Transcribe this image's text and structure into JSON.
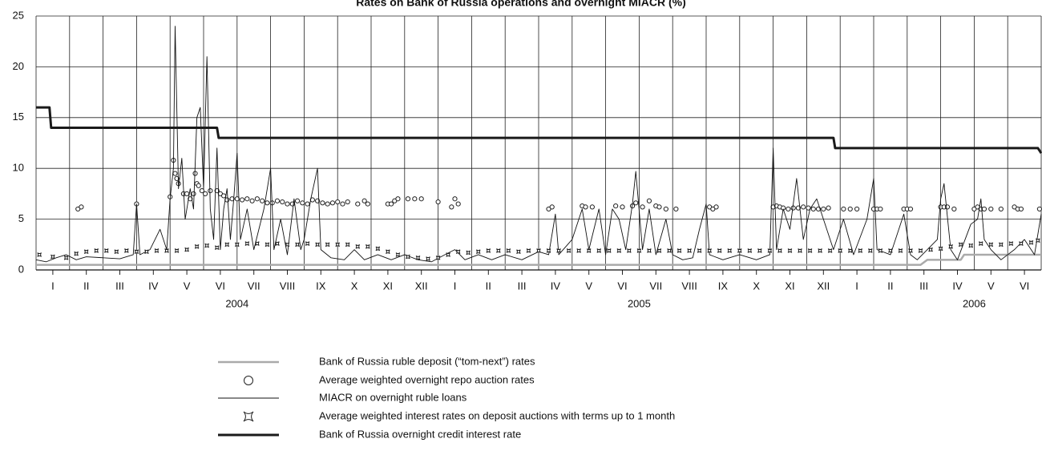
{
  "chart_data": {
    "type": "line",
    "title": "Rates on Bank of Russia operations and overnight MIACR (%)",
    "categories": [
      "I",
      "II",
      "III",
      "IV",
      "V",
      "VI",
      "VII",
      "VIII",
      "IX",
      "X",
      "XI",
      "XII",
      "I",
      "II",
      "III",
      "IV",
      "V",
      "VI",
      "VII",
      "VIII",
      "IX",
      "X",
      "XI",
      "XII",
      "I",
      "II",
      "III",
      "IV",
      "V",
      "VI"
    ],
    "year_labels": [
      "2004",
      "2005",
      "2006"
    ],
    "xlim": [
      0,
      30
    ],
    "xticks": [
      0,
      1,
      2,
      3,
      4,
      5,
      6,
      7,
      8,
      9,
      10,
      11,
      12,
      13,
      14,
      15,
      16,
      17,
      18,
      19,
      20,
      21,
      22,
      23,
      24,
      25,
      26,
      27,
      28,
      29,
      30
    ],
    "ylim": [
      0,
      25
    ],
    "yticks": [
      0,
      5,
      10,
      15,
      20,
      25
    ],
    "grid": true,
    "series": [
      {
        "name": "Bank of Russia ruble deposit (“tom-next”) rates",
        "color": "#aaaaaa",
        "marker": "line",
        "width": 2.5,
        "x": [
          0,
          26.4,
          26.6,
          27.6,
          27.7,
          30
        ],
        "values": [
          0.5,
          0.5,
          1,
          1,
          1.5,
          1.5
        ]
      },
      {
        "name": "Average weighted overnight repo auction rates",
        "color": "#222222",
        "marker": "circle",
        "width": 1,
        "x": [
          1.25,
          1.35,
          3.0,
          4.0,
          4.1,
          4.15,
          4.2,
          4.25,
          4.4,
          4.5,
          4.6,
          4.7,
          4.75,
          4.8,
          4.85,
          4.95,
          5.05,
          5.2,
          5.4,
          5.5,
          5.6,
          5.7,
          5.85,
          6.0,
          6.15,
          6.3,
          6.45,
          6.6,
          6.75,
          6.9,
          7.05,
          7.2,
          7.35,
          7.5,
          7.65,
          7.8,
          7.95,
          8.1,
          8.25,
          8.4,
          8.55,
          8.7,
          8.85,
          9.0,
          9.15,
          9.3,
          9.6,
          9.8,
          9.9,
          10.5,
          10.6,
          10.7,
          10.8,
          11.1,
          11.3,
          11.5,
          12.0,
          12.4,
          12.5,
          12.6,
          15.3,
          15.4,
          16.3,
          16.4,
          16.6,
          17.3,
          17.5,
          17.8,
          17.9,
          18.1,
          18.3,
          18.5,
          18.6,
          18.8,
          19.1,
          20.1,
          20.2,
          20.3,
          22.0,
          22.1,
          22.2,
          22.3,
          22.45,
          22.6,
          22.75,
          22.9,
          23.05,
          23.2,
          23.35,
          23.5,
          23.65,
          24.1,
          24.3,
          24.5,
          25.0,
          25.1,
          25.2,
          25.9,
          26.0,
          26.1,
          27.0,
          27.1,
          27.2,
          27.4,
          28.0,
          28.1,
          28.2,
          28.3,
          28.5,
          28.8,
          29.2,
          29.3,
          29.4,
          29.95
        ],
        "values": [
          6,
          6.2,
          6.5,
          7.2,
          10.8,
          9.5,
          9,
          8.5,
          7.5,
          7.5,
          7,
          7.5,
          9.5,
          8.5,
          8.3,
          7.8,
          7.5,
          7.8,
          7.8,
          7.5,
          7.3,
          6.9,
          7.0,
          7.0,
          6.9,
          7.0,
          6.8,
          7.0,
          6.8,
          6.6,
          6.6,
          6.8,
          6.7,
          6.5,
          6.5,
          6.8,
          6.6,
          6.5,
          6.9,
          6.8,
          6.6,
          6.5,
          6.6,
          6.7,
          6.5,
          6.7,
          6.5,
          6.8,
          6.5,
          6.5,
          6.5,
          6.8,
          7,
          7,
          7,
          7,
          6.7,
          6.2,
          7,
          6.5,
          6,
          6.2,
          6.3,
          6.2,
          6.2,
          6.3,
          6.2,
          6.3,
          6.6,
          6.2,
          6.8,
          6.3,
          6.2,
          6,
          6,
          6.2,
          6,
          6.2,
          6.2,
          6.3,
          6.2,
          6.1,
          6.0,
          6.1,
          6.1,
          6.2,
          6.1,
          6.0,
          6.0,
          6.0,
          6.1,
          6,
          6,
          6,
          6,
          6,
          6,
          6,
          6,
          6,
          6.2,
          6.2,
          6.2,
          6,
          6,
          6.2,
          6,
          6,
          6,
          6,
          6.2,
          6,
          6,
          6
        ]
      },
      {
        "name": "MIACR on overnight ruble loans",
        "color": "#111111",
        "marker": "line",
        "width": 0.9,
        "x": [
          0,
          0.3,
          0.6,
          0.9,
          1.2,
          1.5,
          2,
          2.5,
          2.9,
          3.0,
          3.1,
          3.4,
          3.7,
          3.9,
          4.0,
          4.1,
          4.15,
          4.25,
          4.35,
          4.45,
          4.6,
          4.7,
          4.8,
          4.9,
          5.0,
          5.1,
          5.2,
          5.3,
          5.4,
          5.5,
          5.6,
          5.7,
          5.8,
          5.9,
          6.0,
          6.1,
          6.3,
          6.5,
          6.8,
          7.0,
          7.1,
          7.3,
          7.5,
          7.7,
          7.9,
          8.0,
          8.2,
          8.4,
          8.5,
          8.8,
          9.2,
          9.5,
          9.8,
          10.2,
          10.6,
          11,
          11.4,
          11.8,
          12.2,
          12.5,
          12.8,
          13.2,
          13.6,
          14,
          14.5,
          15,
          15.3,
          15.5,
          15.6,
          16,
          16.3,
          16.5,
          16.8,
          17.0,
          17.2,
          17.4,
          17.6,
          17.8,
          17.9,
          18.1,
          18.3,
          18.5,
          18.8,
          19.0,
          19.3,
          19.6,
          19.8,
          20.0,
          20.1,
          20.5,
          21,
          21.5,
          21.9,
          22.0,
          22.1,
          22.3,
          22.5,
          22.7,
          22.9,
          23.1,
          23.3,
          23.6,
          23.8,
          24.1,
          24.4,
          24.8,
          25.0,
          25.1,
          25.5,
          25.9,
          26.1,
          26.3,
          26.6,
          26.9,
          27.0,
          27.1,
          27.3,
          27.5,
          27.9,
          28.1,
          28.2,
          28.3,
          28.5,
          28.8,
          29.2,
          29.5,
          29.8,
          30
        ],
        "values": [
          1,
          0.8,
          1.2,
          1.5,
          1.0,
          1.3,
          1.2,
          1.1,
          1.5,
          6.5,
          1.5,
          2,
          4,
          2,
          7,
          10,
          24,
          8,
          11,
          5,
          8,
          6,
          15,
          16,
          8,
          21,
          6,
          3,
          12,
          2,
          6,
          8,
          3,
          7,
          11.5,
          3,
          6,
          2,
          6,
          10,
          2,
          5,
          1.5,
          7,
          2,
          3,
          7,
          10,
          2,
          1.2,
          1,
          2,
          1,
          1.5,
          1,
          1.5,
          1,
          0.8,
          1.5,
          2,
          1.0,
          1.5,
          1,
          1.5,
          1,
          1.8,
          1.5,
          5.5,
          1.5,
          3,
          6,
          2,
          6,
          1.5,
          6,
          5,
          2,
          6.5,
          9.7,
          2,
          6,
          1.5,
          5,
          1.5,
          1,
          1.2,
          4,
          6.5,
          1.5,
          1,
          1.5,
          1,
          1.5,
          12,
          2,
          6,
          4,
          9,
          3,
          6,
          7,
          4,
          2,
          5,
          1.5,
          5,
          9,
          2,
          1.5,
          5.5,
          1.5,
          1,
          2,
          3,
          7,
          8.5,
          2,
          1,
          4.5,
          5,
          7,
          3,
          2,
          1,
          2,
          3,
          1.5,
          5.5
        ]
      },
      {
        "name": "Average weighted interest rates on deposit auctions with terms up to 1 month",
        "color": "#222222",
        "marker": "star",
        "width": 1,
        "x": [
          0.1,
          0.5,
          0.9,
          1.2,
          1.5,
          1.8,
          2.1,
          2.4,
          2.7,
          3.0,
          3.3,
          3.6,
          3.9,
          4.2,
          4.5,
          4.8,
          5.1,
          5.4,
          5.7,
          6.0,
          6.3,
          6.6,
          6.9,
          7.2,
          7.5,
          7.8,
          8.1,
          8.4,
          8.7,
          9.0,
          9.3,
          9.6,
          9.9,
          10.2,
          10.5,
          10.8,
          11.1,
          11.4,
          11.7,
          12.0,
          12.3,
          12.6,
          12.9,
          13.2,
          13.5,
          13.8,
          14.1,
          14.4,
          14.7,
          15.0,
          15.3,
          15.6,
          15.9,
          16.2,
          16.5,
          16.8,
          17.1,
          17.4,
          17.7,
          18.0,
          18.3,
          18.6,
          18.9,
          19.2,
          19.5,
          19.8,
          20.1,
          20.4,
          20.7,
          21.0,
          21.3,
          21.6,
          21.9,
          22.2,
          22.5,
          22.8,
          23.1,
          23.4,
          23.7,
          24.0,
          24.3,
          24.6,
          24.9,
          25.2,
          25.5,
          25.8,
          26.1,
          26.4,
          26.7,
          27.0,
          27.3,
          27.6,
          27.9,
          28.2,
          28.5,
          28.8,
          29.1,
          29.4,
          29.7,
          29.9
        ],
        "values": [
          1.5,
          1.3,
          1.2,
          1.6,
          1.8,
          1.9,
          1.9,
          1.8,
          1.9,
          1.8,
          1.8,
          1.9,
          1.9,
          1.9,
          2.0,
          2.3,
          2.4,
          2.2,
          2.5,
          2.5,
          2.6,
          2.6,
          2.5,
          2.6,
          2.5,
          2.5,
          2.6,
          2.5,
          2.5,
          2.5,
          2.5,
          2.3,
          2.3,
          2.1,
          1.8,
          1.5,
          1.3,
          1.2,
          1.1,
          1.2,
          1.5,
          1.8,
          1.7,
          1.8,
          1.9,
          1.9,
          1.9,
          1.8,
          1.9,
          1.9,
          1.9,
          1.9,
          1.9,
          1.9,
          1.9,
          1.9,
          1.9,
          1.9,
          1.9,
          1.9,
          1.9,
          1.9,
          1.9,
          1.9,
          1.9,
          1.9,
          1.9,
          1.9,
          1.9,
          1.9,
          1.9,
          1.9,
          1.9,
          1.9,
          1.9,
          1.9,
          1.9,
          1.9,
          1.9,
          1.9,
          1.9,
          1.9,
          1.9,
          1.9,
          1.9,
          1.9,
          1.9,
          1.9,
          2.0,
          2.1,
          2.3,
          2.5,
          2.4,
          2.6,
          2.5,
          2.5,
          2.6,
          2.6,
          2.7,
          2.9
        ]
      },
      {
        "name": "Bank of Russia overnight credit interest rate",
        "color": "#1a1a1a",
        "marker": "line",
        "width": 3,
        "x": [
          0,
          0.4,
          0.45,
          5.4,
          5.45,
          23.8,
          23.85,
          29.9,
          30
        ],
        "values": [
          16,
          16,
          14,
          14,
          13,
          13,
          12,
          12,
          11.5
        ]
      }
    ]
  }
}
